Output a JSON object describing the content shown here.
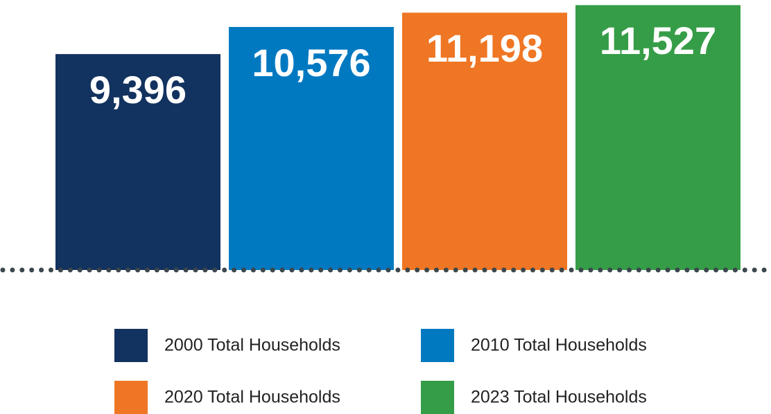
{
  "chart_data": {
    "type": "bar",
    "categories": [
      null
    ],
    "series": [
      {
        "name": "2000 Total Households",
        "color": "#12325f",
        "values": [
          9396
        ],
        "value_labels": [
          "9,396"
        ]
      },
      {
        "name": "2010 Total Households",
        "color": "#0079c1",
        "values": [
          10576
        ],
        "value_labels": [
          "10,576"
        ]
      },
      {
        "name": "2020 Total Households",
        "color": "#ef7624",
        "values": [
          11198
        ],
        "value_labels": [
          "11,198"
        ]
      },
      {
        "name": "2023 Total Households",
        "color": "#359d47",
        "values": [
          11527
        ],
        "value_labels": [
          "11,527"
        ]
      }
    ],
    "ylim": [
      0,
      11750
    ]
  }
}
